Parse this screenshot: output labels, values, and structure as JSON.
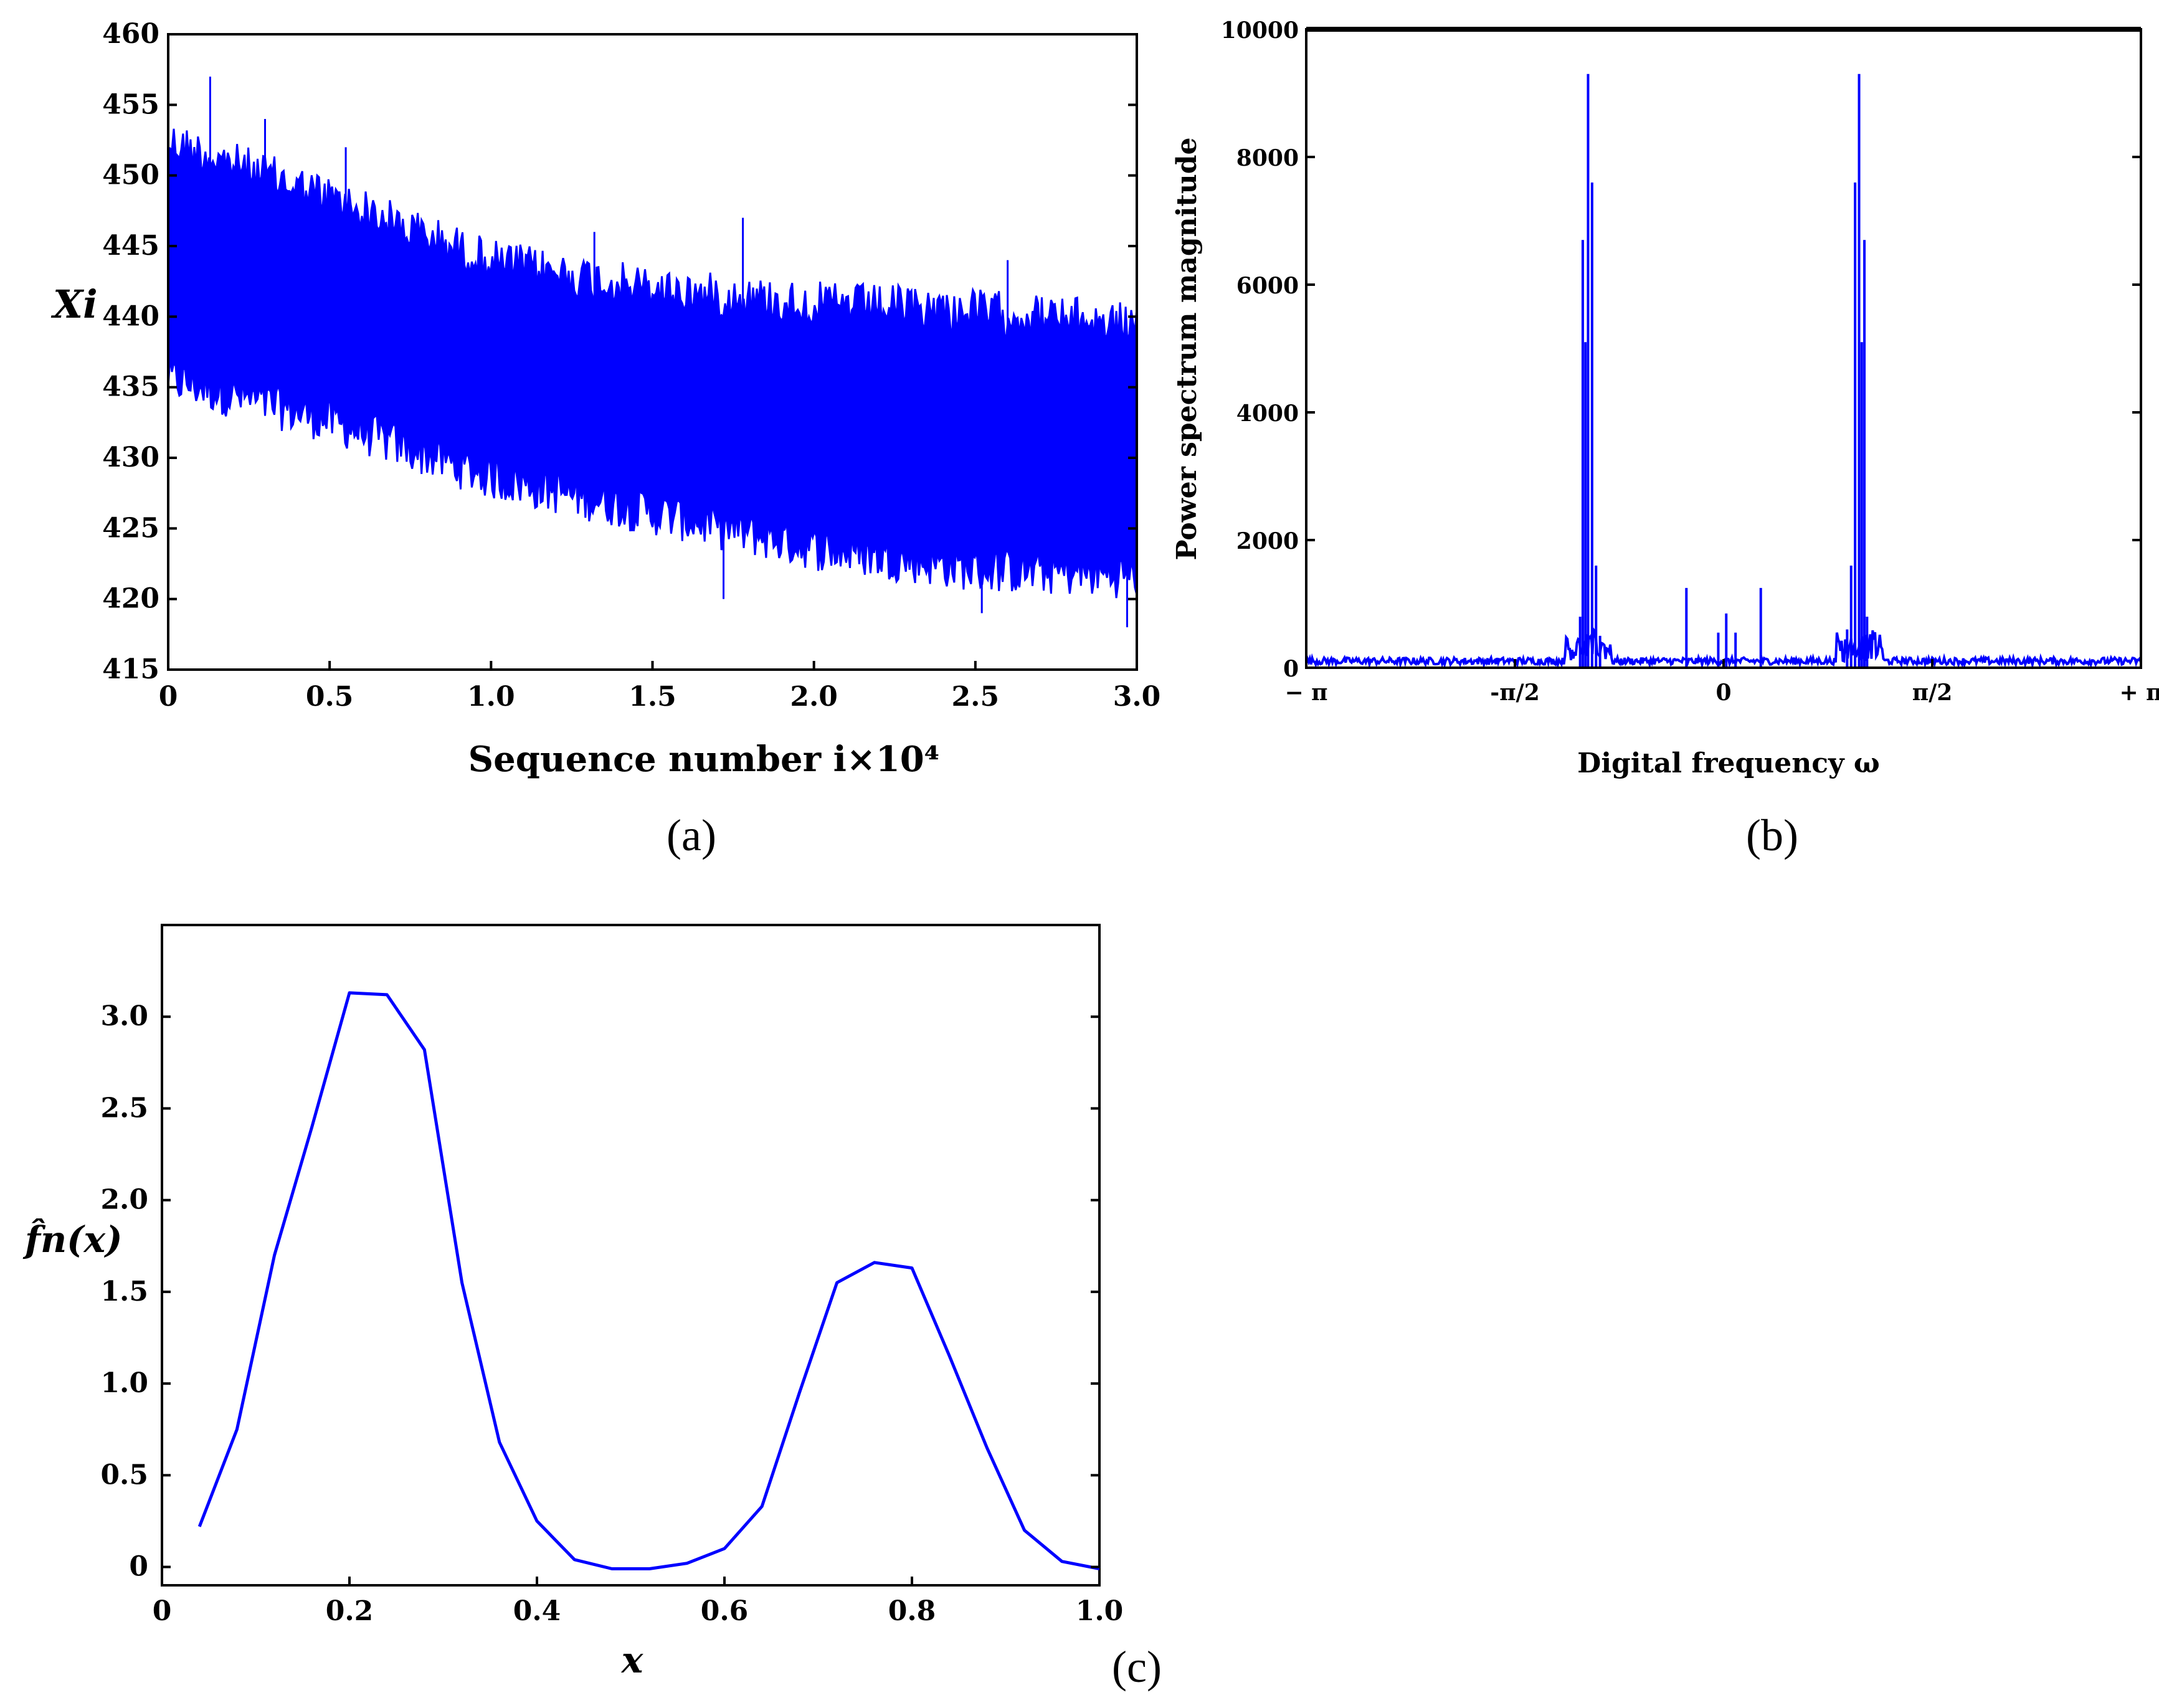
{
  "colors": {
    "line": "#0000FF",
    "axis": "#000000",
    "background": "#FFFFFF"
  },
  "chart_data": [
    {
      "type": "line",
      "panel_label": "(a)",
      "xlabel": "Sequence number  i×10⁴",
      "ylabel": "Xi",
      "xlim": [
        0,
        3.0
      ],
      "ylim": [
        415,
        460
      ],
      "xticks": [
        "0",
        "0.5",
        "1.0",
        "1.5",
        "2.0",
        "2.5",
        "3.0"
      ],
      "yticks": [
        "415",
        "420",
        "425",
        "430",
        "435",
        "440",
        "445",
        "450",
        "455",
        "460"
      ],
      "x_tick_values": [
        0,
        0.5,
        1.0,
        1.5,
        2.0,
        2.5,
        3.0
      ],
      "y_tick_values": [
        415,
        420,
        425,
        430,
        435,
        440,
        445,
        450,
        455,
        460
      ],
      "envelope": {
        "x": [
          0,
          0.5,
          1.0,
          1.5,
          2.0,
          2.5,
          3.0
        ],
        "upper": [
          454,
          450,
          445.5,
          443.5,
          442.5,
          442,
          441
        ],
        "lower": [
          434,
          431,
          427,
          424.5,
          422,
          420.5,
          420
        ]
      },
      "outliers": [
        {
          "x": 0.13,
          "y": 457
        },
        {
          "x": 0.3,
          "y": 454
        },
        {
          "x": 0.55,
          "y": 452
        },
        {
          "x": 1.32,
          "y": 446
        },
        {
          "x": 1.78,
          "y": 447
        },
        {
          "x": 2.6,
          "y": 444
        },
        {
          "x": 1.72,
          "y": 420
        },
        {
          "x": 2.52,
          "y": 419
        },
        {
          "x": 2.97,
          "y": 418
        }
      ]
    },
    {
      "type": "line",
      "panel_label": "(b)",
      "xlabel": "Digital frequency  ω",
      "ylabel": "Power spectrum magnitude",
      "xlim": [
        -3.1416,
        3.1416
      ],
      "ylim": [
        0,
        10000
      ],
      "xticks": [
        "− π",
        "-π/2",
        "0",
        "π/2",
        "+ π"
      ],
      "yticks": [
        "0",
        "2000",
        "4000",
        "6000",
        "8000",
        "10000"
      ],
      "x_tick_values": [
        -3.1416,
        -1.5708,
        0,
        1.5708,
        3.1416
      ],
      "y_tick_values": [
        0,
        2000,
        4000,
        6000,
        8000,
        10000
      ],
      "peaks": [
        {
          "x": -1.08,
          "y": 800
        },
        {
          "x": -1.06,
          "y": 6700
        },
        {
          "x": -1.04,
          "y": 5100
        },
        {
          "x": -1.02,
          "y": 9300
        },
        {
          "x": -0.99,
          "y": 7600
        },
        {
          "x": -0.96,
          "y": 1600
        },
        {
          "x": -0.93,
          "y": 500
        },
        {
          "x": -0.28,
          "y": 1250
        },
        {
          "x": -0.04,
          "y": 550
        },
        {
          "x": 0.02,
          "y": 850
        },
        {
          "x": 0.09,
          "y": 550
        },
        {
          "x": 0.28,
          "y": 1250
        },
        {
          "x": 0.93,
          "y": 600
        },
        {
          "x": 0.96,
          "y": 1600
        },
        {
          "x": 0.99,
          "y": 7600
        },
        {
          "x": 1.02,
          "y": 9300
        },
        {
          "x": 1.04,
          "y": 5100
        },
        {
          "x": 1.06,
          "y": 6700
        },
        {
          "x": 1.08,
          "y": 800
        }
      ]
    },
    {
      "type": "line",
      "panel_label": "(c)",
      "xlabel": "x",
      "ylabel": "f̂n(x)",
      "xlim": [
        0,
        1.0
      ],
      "ylim": [
        -0.1,
        3.5
      ],
      "xticks": [
        "0",
        "0.2",
        "0.4",
        "0.6",
        "0.8",
        "1.0"
      ],
      "yticks": [
        "0",
        "0.5",
        "1.0",
        "1.5",
        "2.0",
        "2.5",
        "3.0"
      ],
      "x_tick_values": [
        0,
        0.2,
        0.4,
        0.6,
        0.8,
        1.0
      ],
      "y_tick_values": [
        0,
        0.5,
        1.0,
        1.5,
        2.0,
        2.5,
        3.0
      ],
      "x": [
        0.04,
        0.08,
        0.12,
        0.16,
        0.2,
        0.24,
        0.28,
        0.32,
        0.36,
        0.4,
        0.44,
        0.48,
        0.52,
        0.56,
        0.6,
        0.64,
        0.68,
        0.72,
        0.76,
        0.8,
        0.84,
        0.88,
        0.92,
        0.96,
        1.0
      ],
      "y": [
        0.22,
        0.75,
        1.7,
        2.4,
        3.13,
        3.12,
        2.82,
        1.55,
        0.68,
        0.25,
        0.04,
        -0.01,
        -0.01,
        0.02,
        0.1,
        0.33,
        0.95,
        1.55,
        1.66,
        1.63,
        1.15,
        0.65,
        0.2,
        0.03,
        -0.01
      ]
    }
  ]
}
